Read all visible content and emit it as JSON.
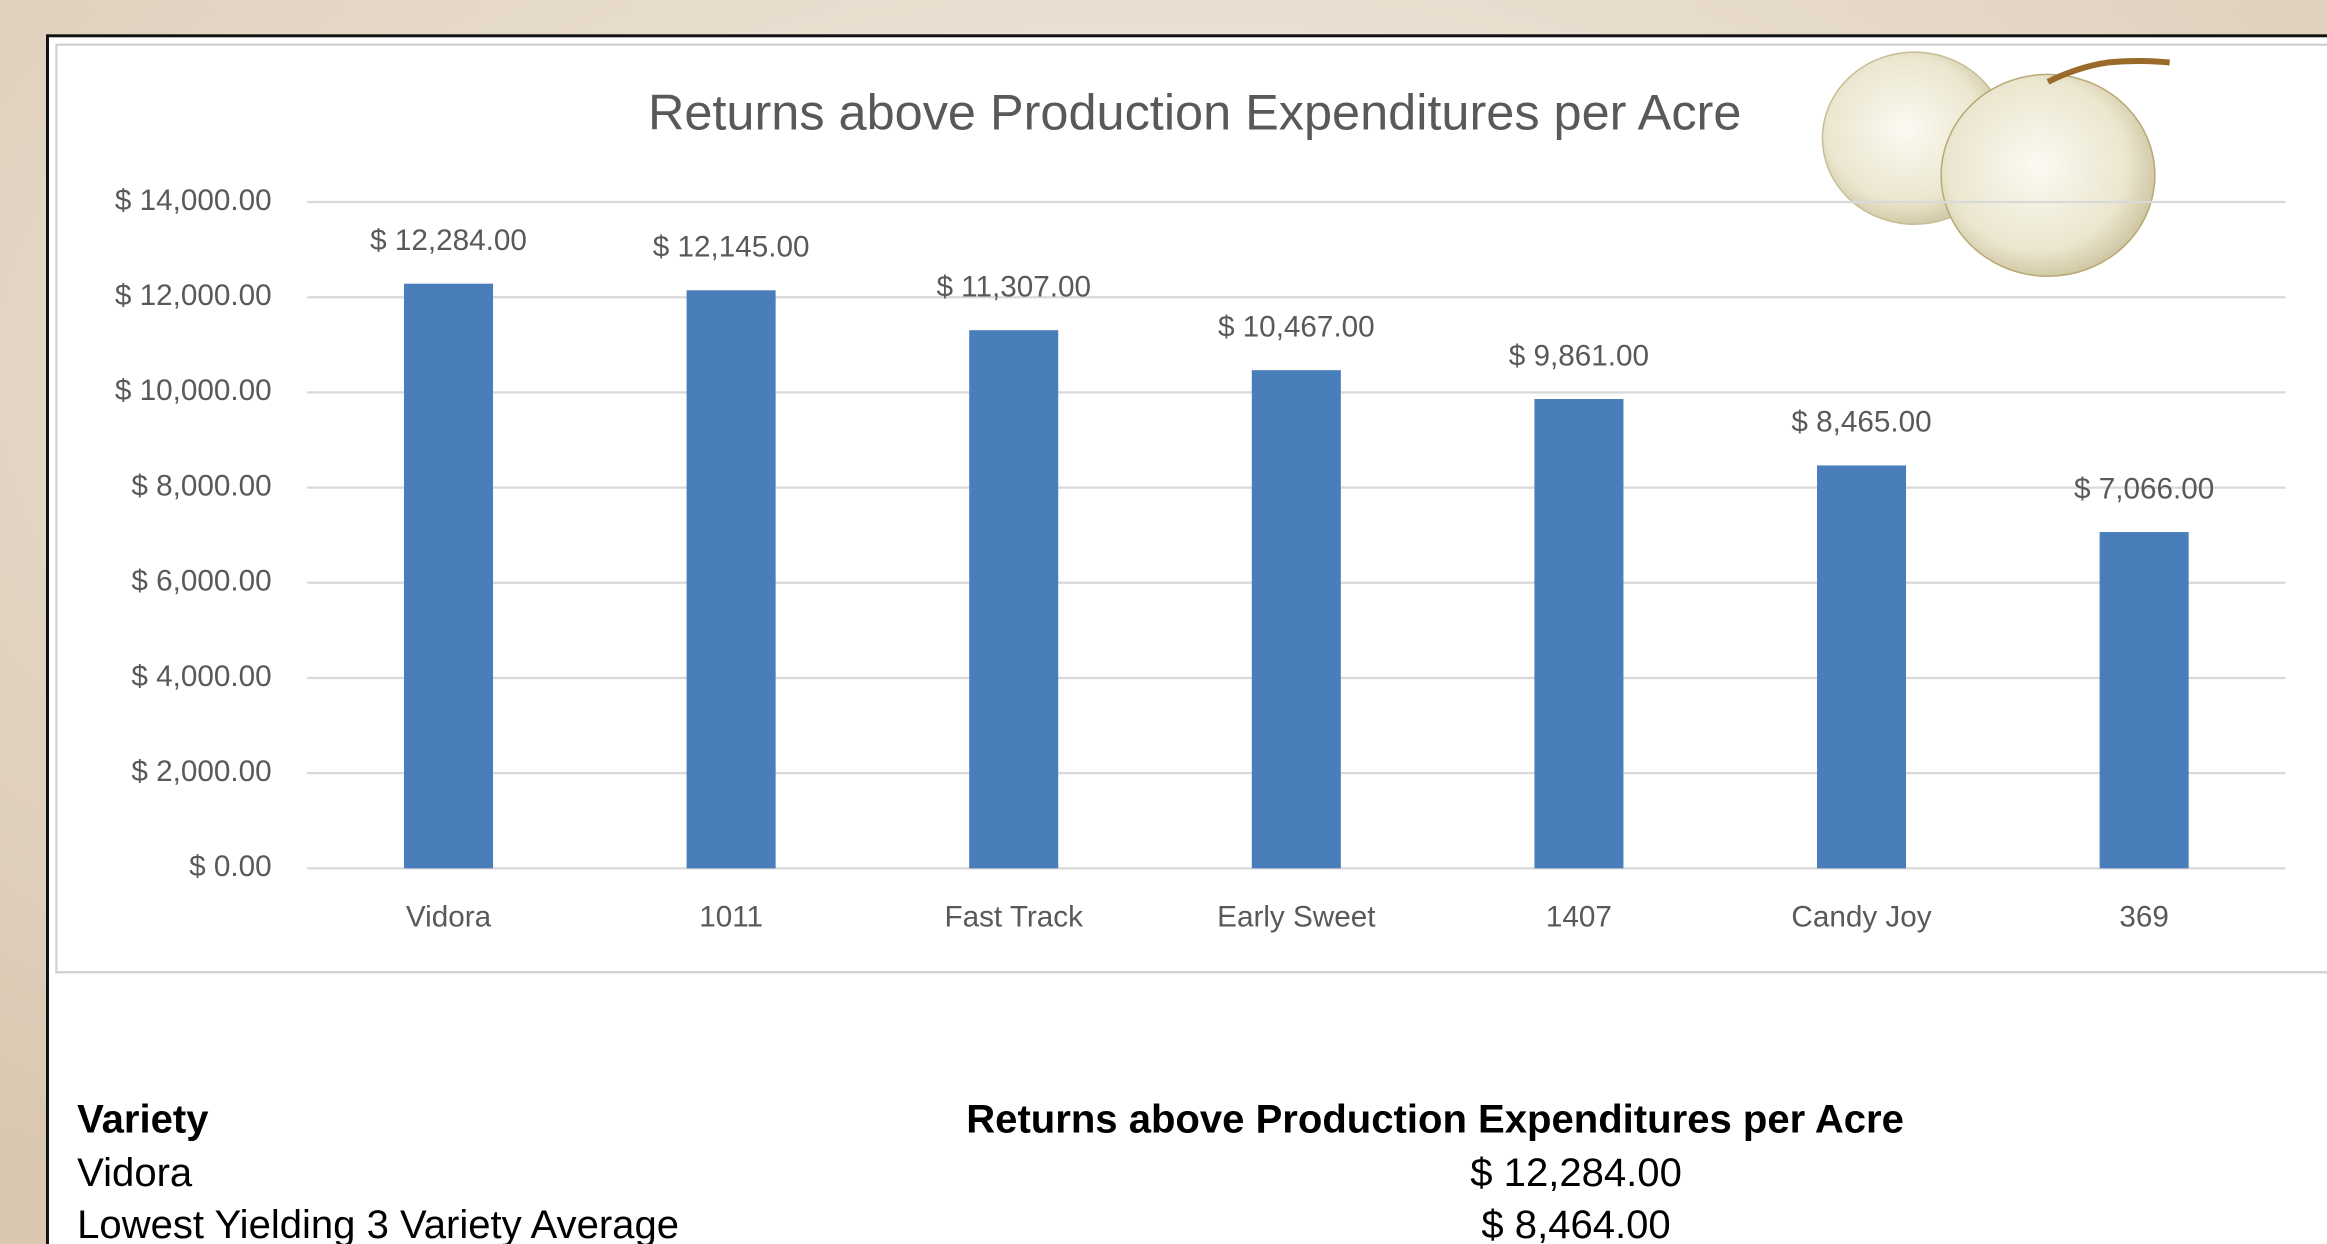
{
  "chart_data": {
    "type": "bar",
    "title": "Returns above Production Expenditures per Acre",
    "categories": [
      "Vidora",
      "1011",
      "Fast Track",
      "Early Sweet",
      "1407",
      "Candy Joy",
      "369"
    ],
    "values": [
      12284,
      12145,
      11307,
      10467,
      9861,
      8465,
      7066
    ],
    "value_labels": [
      "$ 12,284.00",
      "$ 12,145.00",
      "$ 11,307.00",
      "$ 10,467.00",
      "$ 9,861.00",
      "$ 8,465.00",
      "$ 7,066.00"
    ],
    "color": "#4a7ebb",
    "ylim": [
      0,
      14000
    ],
    "yticks": [
      {
        "value": 0,
        "label": "$ 0.00"
      },
      {
        "value": 2000,
        "label": "$ 2,000.00"
      },
      {
        "value": 4000,
        "label": "$ 4,000.00"
      },
      {
        "value": 6000,
        "label": "$ 6,000.00"
      },
      {
        "value": 8000,
        "label": "$ 8,000.00"
      },
      {
        "value": 10000,
        "label": "$ 10,000.00"
      },
      {
        "value": 12000,
        "label": "$ 12,000.00"
      },
      {
        "value": 14000,
        "label": "$ 14,000.00"
      }
    ],
    "grid": true
  },
  "table": {
    "header": [
      "Variety",
      "Returns above Production Expenditures per Acre"
    ],
    "rows": [
      [
        "Vidora",
        "$ 12,284.00"
      ],
      [
        "Lowest Yielding 3 Variety Average",
        "$ 8,464.00"
      ]
    ]
  }
}
